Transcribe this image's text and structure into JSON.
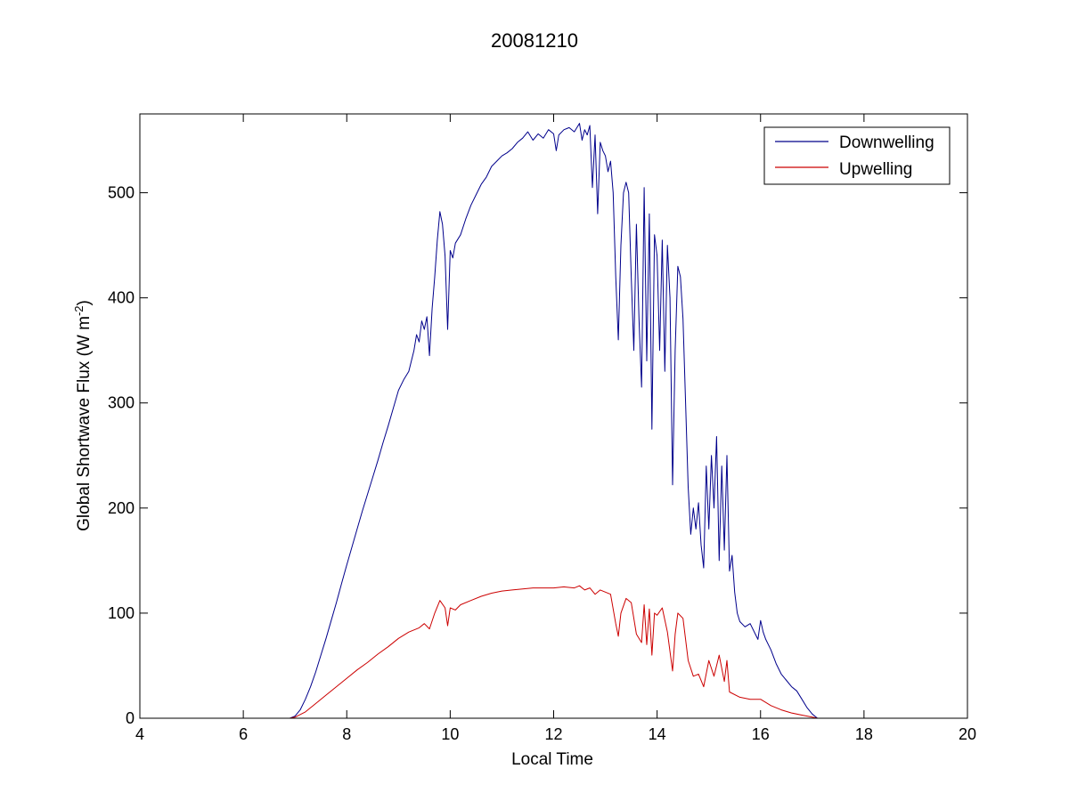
{
  "chart_data": {
    "type": "line",
    "title": "20081210",
    "xlabel": "Local Time",
    "ylabel": {
      "main": "Global Shortwave Flux (W m",
      "superscript": "-2",
      "close": ")"
    },
    "xlim": [
      4,
      20
    ],
    "ylim": [
      0,
      575
    ],
    "xticks": [
      4,
      6,
      8,
      10,
      12,
      14,
      16,
      18,
      20
    ],
    "yticks": [
      0,
      100,
      200,
      300,
      400,
      500
    ],
    "grid": false,
    "legend_position": "top-right",
    "series": [
      {
        "name": "Downwelling",
        "color": "#00008b",
        "points": [
          [
            6.9,
            0
          ],
          [
            7.0,
            2
          ],
          [
            7.1,
            8
          ],
          [
            7.2,
            18
          ],
          [
            7.3,
            30
          ],
          [
            7.4,
            44
          ],
          [
            7.5,
            60
          ],
          [
            7.6,
            76
          ],
          [
            7.7,
            93
          ],
          [
            7.8,
            110
          ],
          [
            7.9,
            128
          ],
          [
            8.0,
            146
          ],
          [
            8.1,
            163
          ],
          [
            8.2,
            180
          ],
          [
            8.3,
            197
          ],
          [
            8.4,
            213
          ],
          [
            8.5,
            229
          ],
          [
            8.6,
            245
          ],
          [
            8.7,
            262
          ],
          [
            8.8,
            278
          ],
          [
            8.9,
            295
          ],
          [
            9.0,
            312
          ],
          [
            9.1,
            322
          ],
          [
            9.2,
            330
          ],
          [
            9.3,
            350
          ],
          [
            9.35,
            365
          ],
          [
            9.4,
            358
          ],
          [
            9.45,
            378
          ],
          [
            9.5,
            370
          ],
          [
            9.55,
            382
          ],
          [
            9.6,
            345
          ],
          [
            9.65,
            390
          ],
          [
            9.7,
            420
          ],
          [
            9.75,
            455
          ],
          [
            9.8,
            482
          ],
          [
            9.85,
            470
          ],
          [
            9.9,
            440
          ],
          [
            9.95,
            370
          ],
          [
            10.0,
            445
          ],
          [
            10.05,
            438
          ],
          [
            10.1,
            452
          ],
          [
            10.2,
            460
          ],
          [
            10.3,
            475
          ],
          [
            10.4,
            488
          ],
          [
            10.5,
            498
          ],
          [
            10.6,
            508
          ],
          [
            10.7,
            515
          ],
          [
            10.8,
            525
          ],
          [
            10.9,
            530
          ],
          [
            11.0,
            535
          ],
          [
            11.1,
            538
          ],
          [
            11.2,
            542
          ],
          [
            11.3,
            548
          ],
          [
            11.4,
            552
          ],
          [
            11.5,
            558
          ],
          [
            11.6,
            550
          ],
          [
            11.7,
            556
          ],
          [
            11.8,
            552
          ],
          [
            11.9,
            560
          ],
          [
            12.0,
            556
          ],
          [
            12.05,
            540
          ],
          [
            12.1,
            555
          ],
          [
            12.2,
            560
          ],
          [
            12.3,
            562
          ],
          [
            12.4,
            558
          ],
          [
            12.5,
            566
          ],
          [
            12.55,
            550
          ],
          [
            12.6,
            560
          ],
          [
            12.65,
            555
          ],
          [
            12.7,
            564
          ],
          [
            12.75,
            505
          ],
          [
            12.8,
            555
          ],
          [
            12.85,
            480
          ],
          [
            12.9,
            548
          ],
          [
            12.95,
            540
          ],
          [
            13.0,
            535
          ],
          [
            13.05,
            520
          ],
          [
            13.1,
            530
          ],
          [
            13.15,
            500
          ],
          [
            13.2,
            420
          ],
          [
            13.25,
            360
          ],
          [
            13.3,
            450
          ],
          [
            13.35,
            500
          ],
          [
            13.4,
            510
          ],
          [
            13.45,
            500
          ],
          [
            13.5,
            420
          ],
          [
            13.55,
            350
          ],
          [
            13.6,
            470
          ],
          [
            13.65,
            380
          ],
          [
            13.7,
            315
          ],
          [
            13.75,
            505
          ],
          [
            13.8,
            340
          ],
          [
            13.85,
            480
          ],
          [
            13.9,
            275
          ],
          [
            13.95,
            460
          ],
          [
            14.0,
            440
          ],
          [
            14.05,
            350
          ],
          [
            14.1,
            455
          ],
          [
            14.15,
            330
          ],
          [
            14.2,
            450
          ],
          [
            14.25,
            400
          ],
          [
            14.3,
            222
          ],
          [
            14.35,
            350
          ],
          [
            14.4,
            430
          ],
          [
            14.45,
            420
          ],
          [
            14.5,
            380
          ],
          [
            14.55,
            300
          ],
          [
            14.6,
            220
          ],
          [
            14.65,
            175
          ],
          [
            14.7,
            200
          ],
          [
            14.75,
            180
          ],
          [
            14.8,
            205
          ],
          [
            14.85,
            165
          ],
          [
            14.9,
            143
          ],
          [
            14.95,
            240
          ],
          [
            15.0,
            180
          ],
          [
            15.05,
            250
          ],
          [
            15.1,
            200
          ],
          [
            15.15,
            268
          ],
          [
            15.2,
            150
          ],
          [
            15.25,
            240
          ],
          [
            15.3,
            160
          ],
          [
            15.35,
            250
          ],
          [
            15.4,
            140
          ],
          [
            15.45,
            155
          ],
          [
            15.5,
            120
          ],
          [
            15.55,
            100
          ],
          [
            15.6,
            92
          ],
          [
            15.7,
            87
          ],
          [
            15.8,
            90
          ],
          [
            15.9,
            80
          ],
          [
            15.95,
            75
          ],
          [
            16.0,
            93
          ],
          [
            16.05,
            82
          ],
          [
            16.1,
            75
          ],
          [
            16.2,
            65
          ],
          [
            16.3,
            52
          ],
          [
            16.4,
            42
          ],
          [
            16.5,
            36
          ],
          [
            16.6,
            30
          ],
          [
            16.7,
            26
          ],
          [
            16.8,
            18
          ],
          [
            16.9,
            10
          ],
          [
            17.0,
            4
          ],
          [
            17.1,
            0
          ]
        ]
      },
      {
        "name": "Upwelling",
        "color": "#cc0000",
        "points": [
          [
            6.9,
            0
          ],
          [
            7.0,
            1
          ],
          [
            7.2,
            6
          ],
          [
            7.4,
            14
          ],
          [
            7.6,
            22
          ],
          [
            7.8,
            30
          ],
          [
            8.0,
            38
          ],
          [
            8.2,
            46
          ],
          [
            8.4,
            53
          ],
          [
            8.6,
            61
          ],
          [
            8.8,
            68
          ],
          [
            9.0,
            76
          ],
          [
            9.2,
            82
          ],
          [
            9.4,
            86
          ],
          [
            9.5,
            90
          ],
          [
            9.6,
            85
          ],
          [
            9.7,
            100
          ],
          [
            9.8,
            112
          ],
          [
            9.9,
            105
          ],
          [
            9.95,
            88
          ],
          [
            10.0,
            105
          ],
          [
            10.1,
            103
          ],
          [
            10.2,
            108
          ],
          [
            10.4,
            112
          ],
          [
            10.6,
            116
          ],
          [
            10.8,
            119
          ],
          [
            11.0,
            121
          ],
          [
            11.2,
            122
          ],
          [
            11.4,
            123
          ],
          [
            11.6,
            124
          ],
          [
            11.8,
            124
          ],
          [
            12.0,
            124
          ],
          [
            12.2,
            125
          ],
          [
            12.4,
            124
          ],
          [
            12.5,
            126
          ],
          [
            12.6,
            122
          ],
          [
            12.7,
            124
          ],
          [
            12.8,
            118
          ],
          [
            12.9,
            122
          ],
          [
            13.0,
            120
          ],
          [
            13.1,
            118
          ],
          [
            13.2,
            90
          ],
          [
            13.25,
            78
          ],
          [
            13.3,
            100
          ],
          [
            13.4,
            114
          ],
          [
            13.5,
            110
          ],
          [
            13.6,
            80
          ],
          [
            13.7,
            72
          ],
          [
            13.75,
            108
          ],
          [
            13.8,
            70
          ],
          [
            13.85,
            104
          ],
          [
            13.9,
            60
          ],
          [
            13.95,
            100
          ],
          [
            14.0,
            98
          ],
          [
            14.1,
            105
          ],
          [
            14.2,
            82
          ],
          [
            14.3,
            45
          ],
          [
            14.35,
            80
          ],
          [
            14.4,
            100
          ],
          [
            14.5,
            95
          ],
          [
            14.6,
            55
          ],
          [
            14.7,
            40
          ],
          [
            14.8,
            42
          ],
          [
            14.9,
            30
          ],
          [
            15.0,
            55
          ],
          [
            15.1,
            40
          ],
          [
            15.2,
            60
          ],
          [
            15.3,
            35
          ],
          [
            15.35,
            55
          ],
          [
            15.4,
            25
          ],
          [
            15.6,
            20
          ],
          [
            15.8,
            18
          ],
          [
            16.0,
            18
          ],
          [
            16.2,
            12
          ],
          [
            16.4,
            8
          ],
          [
            16.6,
            5
          ],
          [
            16.8,
            3
          ],
          [
            17.0,
            1
          ],
          [
            17.1,
            0
          ]
        ]
      }
    ]
  }
}
